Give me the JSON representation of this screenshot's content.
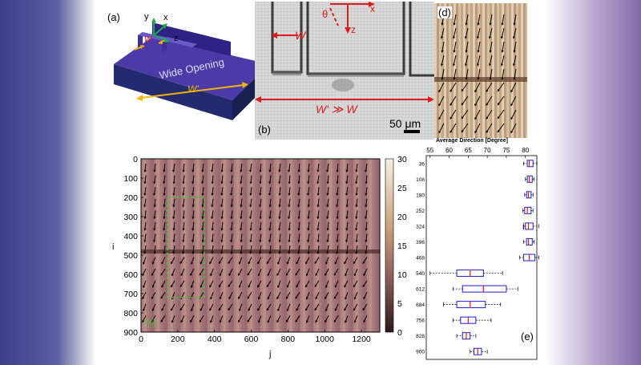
{
  "panel_a": {
    "label": "(a)",
    "axis_y": "y",
    "axis_x": "x",
    "axis_z": "z",
    "width_small": "W",
    "opening_text": "Wide Opening",
    "width_large": "W'"
  },
  "panel_b": {
    "label": "(b)",
    "theta": "θ",
    "axis_x": "x",
    "axis_z": "z",
    "width_small": "W",
    "relation": "W' ≫ W",
    "scale_bar": "50 μm"
  },
  "panel_d": {
    "label": "(d)"
  },
  "panel_c": {
    "label": "(c)",
    "xlabel": "j",
    "ylabel": "i",
    "x_ticks": [
      "0",
      "200",
      "400",
      "600",
      "800",
      "1000",
      "1200"
    ],
    "y_ticks": [
      "0",
      "100",
      "200",
      "300",
      "400",
      "500",
      "600",
      "700",
      "800",
      "900"
    ],
    "colorbar_ticks": [
      "30",
      "25",
      "20",
      "15",
      "10",
      "5",
      "0"
    ],
    "inset_label": "(c)"
  },
  "panel_e": {
    "label": "(e)",
    "title": "Average Direction [Degree]",
    "ylabel": "i",
    "x_ticks": [
      "55",
      "60",
      "65",
      "70",
      "75",
      "80"
    ]
  },
  "chart_data": [
    {
      "type": "heatmap",
      "xlabel": "j",
      "ylabel": "i",
      "xlim": [
        0,
        1300
      ],
      "ylim": [
        0,
        900
      ],
      "colorbar": {
        "min": 0,
        "max": 30,
        "ticks": [
          0,
          5,
          10,
          15,
          20,
          25,
          30
        ]
      },
      "x_ticks": [
        0,
        200,
        400,
        600,
        800,
        1000,
        1200
      ],
      "y_ticks": [
        0,
        100,
        200,
        300,
        400,
        500,
        600,
        700,
        800,
        900
      ]
    },
    {
      "type": "box",
      "title": "Average Direction [Degree]",
      "ylabel": "i",
      "xlim": [
        54,
        83
      ],
      "x_ticks": [
        55,
        60,
        65,
        70,
        75,
        80
      ],
      "categories": [
        "36",
        "108",
        "180",
        "252",
        "324",
        "396",
        "468",
        "540",
        "612",
        "684",
        "756",
        "828",
        "900"
      ],
      "boxes": [
        {
          "whisker_low": 79.5,
          "q1": 80.5,
          "median": 81.0,
          "q3": 82.0,
          "whisker_high": 83.0
        },
        {
          "whisker_low": 80.0,
          "q1": 80.5,
          "median": 81.0,
          "q3": 81.8,
          "whisker_high": 82.3
        },
        {
          "whisker_low": 79.8,
          "q1": 80.3,
          "median": 80.8,
          "q3": 81.5,
          "whisker_high": 82.0
        },
        {
          "whisker_low": 79.3,
          "q1": 79.8,
          "median": 80.5,
          "q3": 81.5,
          "whisker_high": 82.0
        },
        {
          "whisker_low": 79.5,
          "q1": 80.0,
          "median": 80.8,
          "q3": 82.0,
          "whisker_high": 83.5
        },
        {
          "whisker_low": 79.5,
          "q1": 80.3,
          "median": 80.8,
          "q3": 81.8,
          "whisker_high": 82.3
        },
        {
          "whisker_low": 78.5,
          "q1": 79.5,
          "median": 81.0,
          "q3": 82.5,
          "whisker_high": 83.5
        },
        {
          "whisker_low": 55.0,
          "q1": 62.0,
          "median": 65.5,
          "q3": 69.0,
          "whisker_high": 74.0
        },
        {
          "whisker_low": 61.0,
          "q1": 63.5,
          "median": 69.0,
          "q3": 75.0,
          "whisker_high": 78.0
        },
        {
          "whisker_low": 58.5,
          "q1": 62.0,
          "median": 65.5,
          "q3": 69.5,
          "whisker_high": 73.5
        },
        {
          "whisker_low": 61.0,
          "q1": 63.0,
          "median": 65.0,
          "q3": 67.0,
          "whisker_high": 71.0
        },
        {
          "whisker_low": 62.0,
          "q1": 63.5,
          "median": 64.5,
          "q3": 65.5,
          "whisker_high": 67.0
        },
        {
          "whisker_low": 65.5,
          "q1": 66.5,
          "median": 67.5,
          "q3": 68.5,
          "whisker_high": 70.0
        }
      ]
    }
  ],
  "colors": {
    "arrow_red": "#e01b1b",
    "arrow_yellow": "#f2b400",
    "box_blue": "#1c1cd8",
    "median_red": "#e01b1b",
    "inset_green": "#2fd02f",
    "device_purple": "#3b2a9a"
  }
}
